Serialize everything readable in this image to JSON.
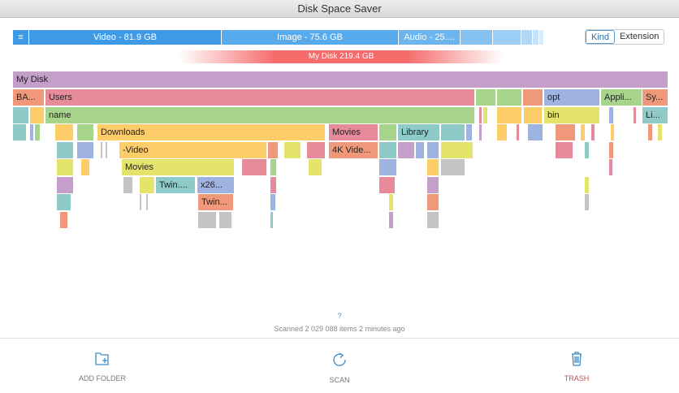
{
  "window": {
    "title": "Disk Space Saver"
  },
  "kind_bar": {
    "menu_icon": "≡",
    "segments": [
      "Video - 81.9 GB",
      "Image - 75.6 GB",
      "Audio - 25...."
    ]
  },
  "view_toggle": {
    "kind": "Kind",
    "extension": "Extension",
    "selected": "Kind"
  },
  "total": {
    "label": "My Disk 219.4 GB"
  },
  "treemap": {
    "root": "My Disk",
    "ba": "BA...",
    "users": "Users",
    "opt": "opt",
    "appli": "Appli...",
    "sy": "Sy...",
    "name": "name",
    "bin": "bin",
    "li": "Li...",
    "downloads": "Downloads",
    "movies1": "Movies",
    "library": "Library",
    "video": "-Video",
    "k4": "4K Vide...",
    "movies2": "Movies",
    "twin1": "Twin....",
    "x26": "x26...",
    "twin2": "Twin..."
  },
  "status": {
    "help": "?",
    "scanned": "Scanned 2 029 088 items 2 minutes ago"
  },
  "actions": {
    "add_folder": "ADD FOLDER",
    "scan": "SCAN",
    "trash": "TRASH"
  },
  "colors": {
    "accent": "#3d8cc4",
    "trash": "#c0504d",
    "kind_bar": "#3f9ae6"
  }
}
